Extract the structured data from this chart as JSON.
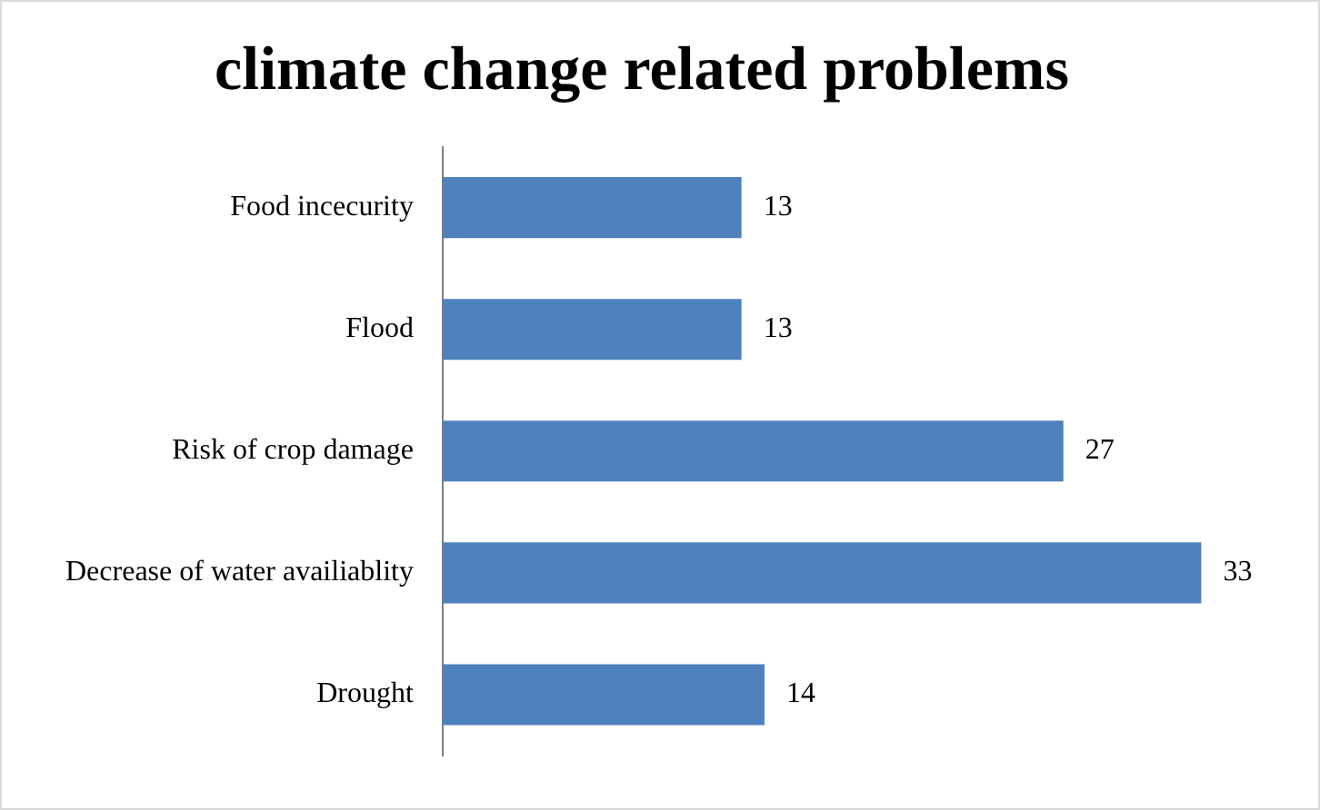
{
  "chart_data": {
    "type": "bar",
    "orientation": "horizontal",
    "title": "climate change related problems",
    "categories": [
      "Food incecurity",
      "Flood",
      "Risk of crop damage",
      "Decrease of water availiablity",
      "Drought"
    ],
    "values": [
      13,
      13,
      27,
      33,
      14
    ],
    "color": "#4f81bd",
    "data_labels": true,
    "legend": false
  }
}
